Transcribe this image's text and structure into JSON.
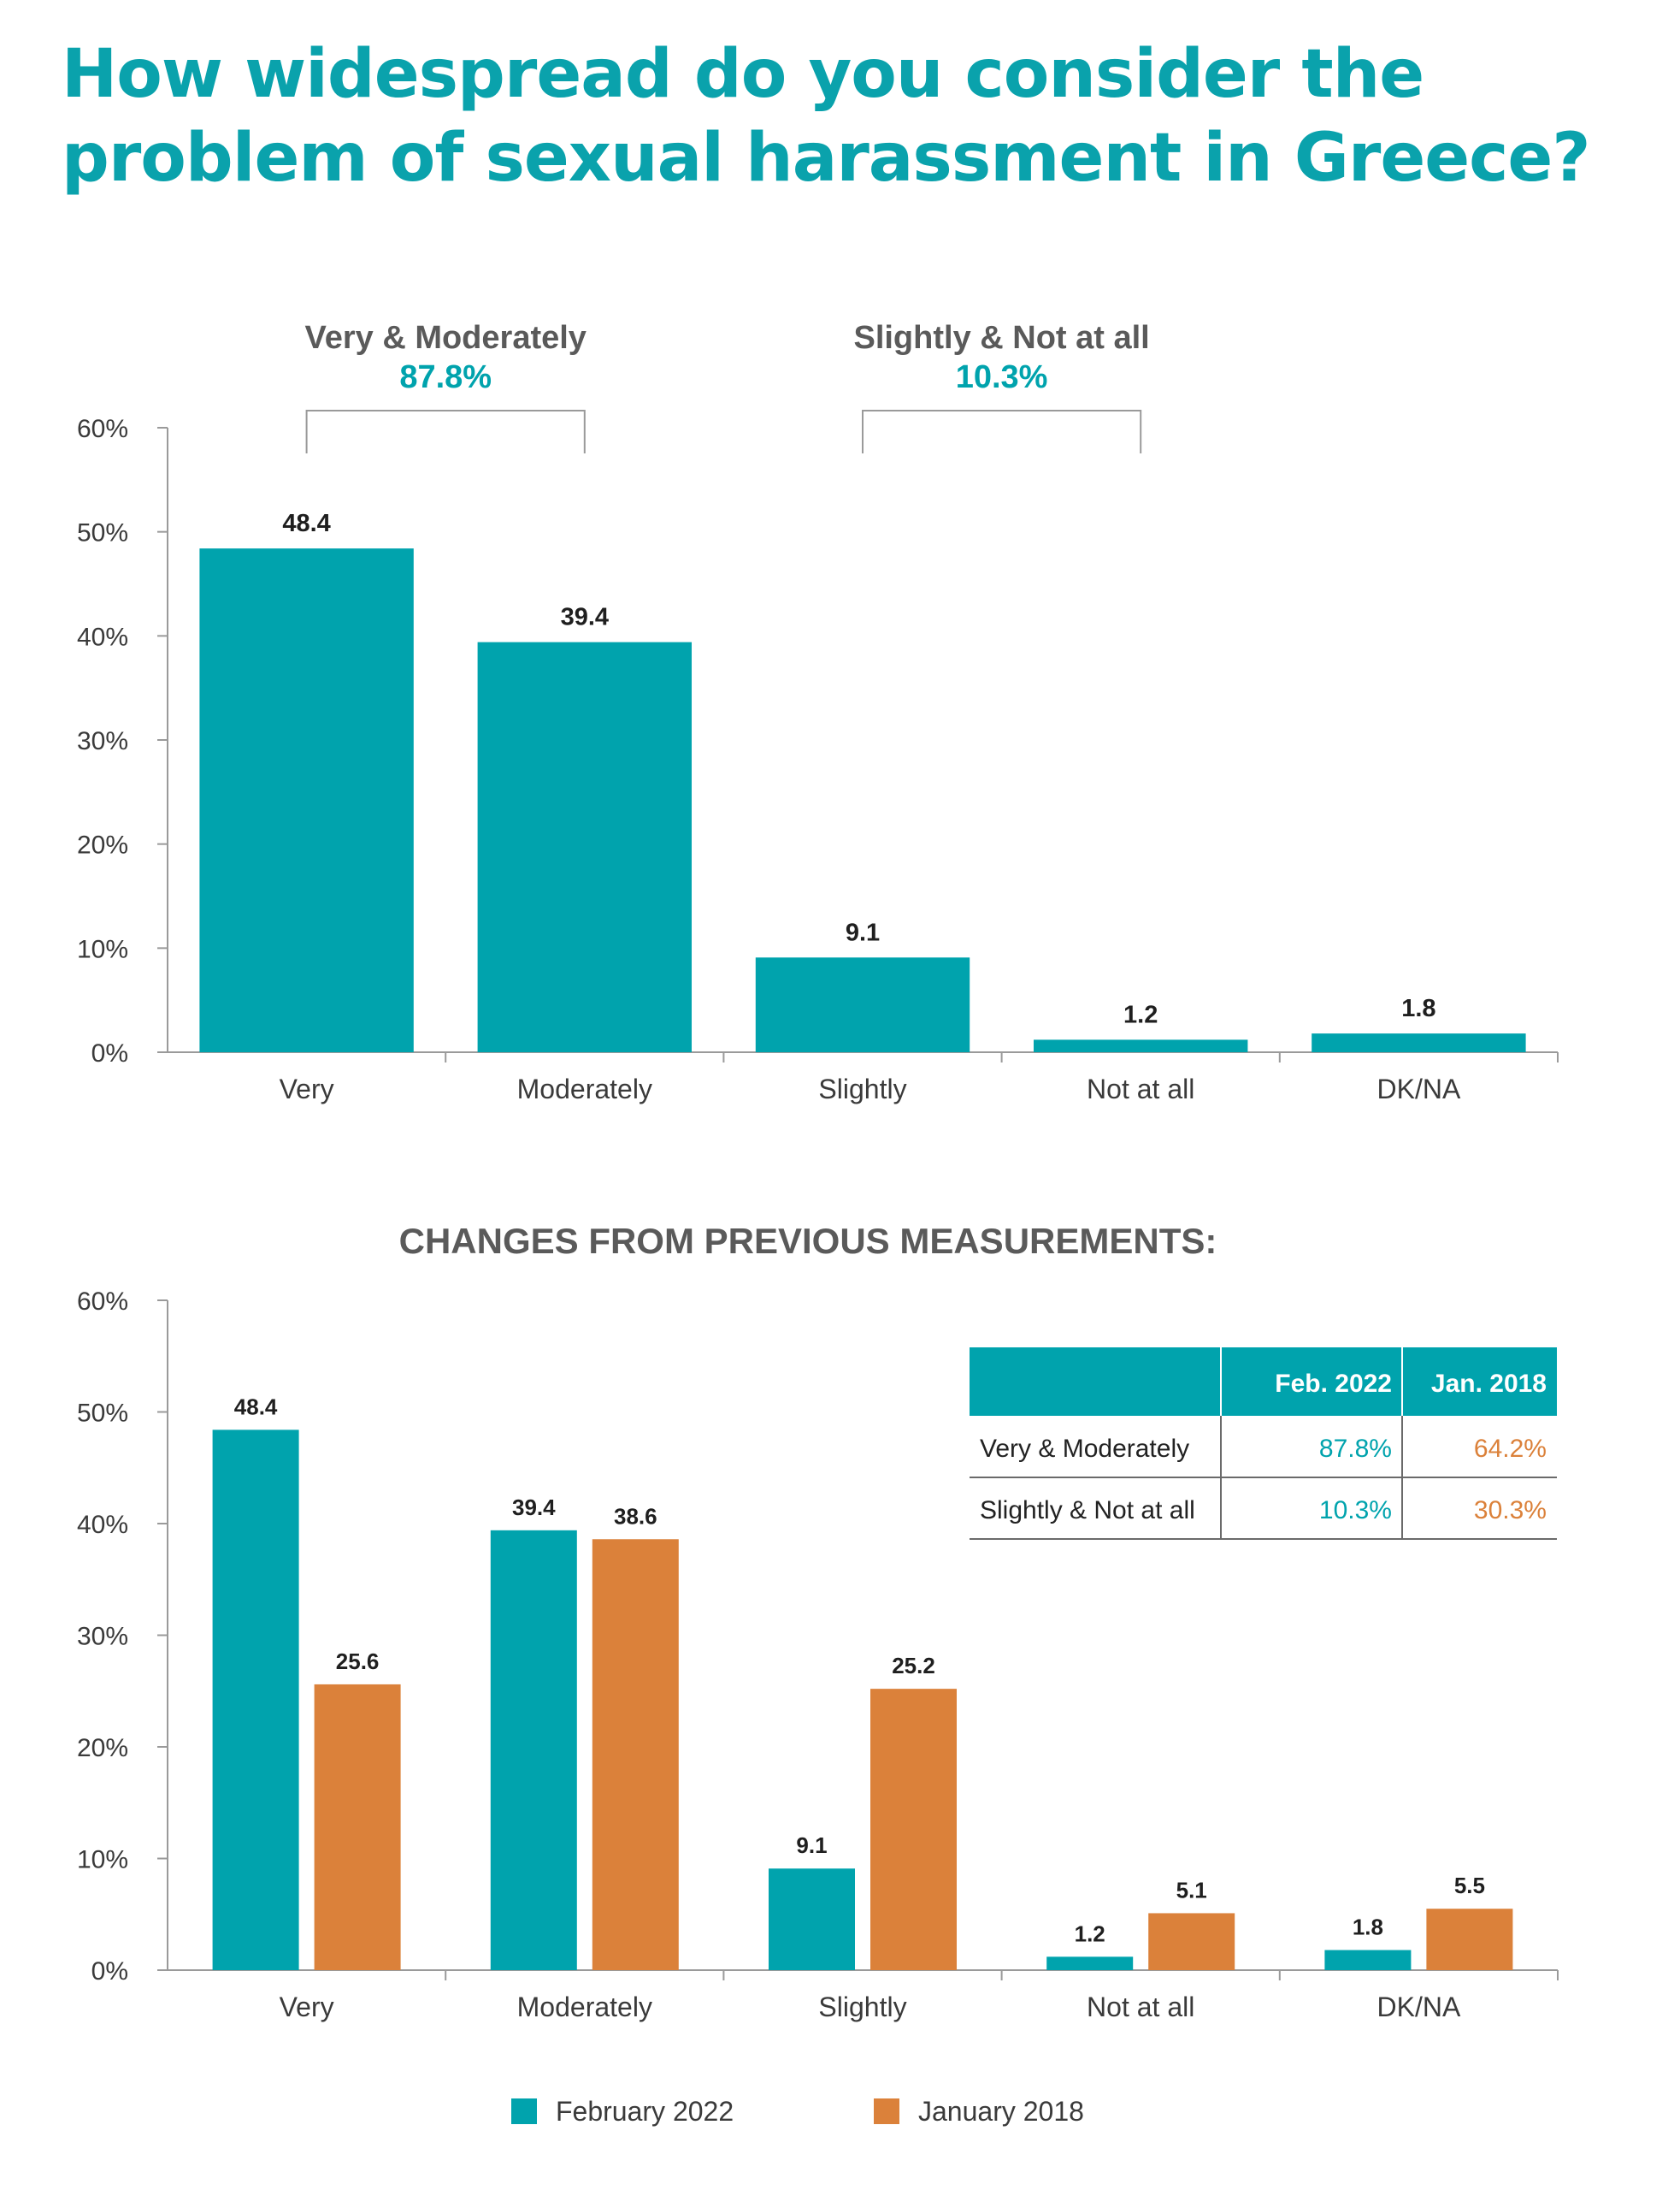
{
  "title_line1": "How widespread do you consider the",
  "title_line2": "problem of sexual harassment in Greece?",
  "colors": {
    "title": "#0aa2ac",
    "teal": "#00a3ad",
    "orange": "#db813a",
    "axis": "#9a9a9a",
    "text": "#3a3a3a",
    "muted": "#5a5a5a"
  },
  "chart_data": [
    {
      "type": "bar",
      "categories": [
        "Very",
        "Moderately",
        "Slightly",
        "Not at all",
        "DK/NA"
      ],
      "values": [
        48.4,
        39.4,
        9.1,
        1.2,
        1.8
      ],
      "value_labels": [
        "48.4",
        "39.4",
        "9.1",
        "1.2",
        "1.8"
      ],
      "yticks": [
        "0%",
        "10%",
        "20%",
        "30%",
        "40%",
        "50%",
        "60%"
      ],
      "ylim": [
        0,
        60
      ],
      "grid": false,
      "groups": [
        {
          "label": "Very & Moderately",
          "value": "87.8%"
        },
        {
          "label": "Slightly & Not at all",
          "value": "10.3%"
        }
      ]
    },
    {
      "type": "bar",
      "title": "CHANGES FROM PREVIOUS MEASUREMENTS:",
      "categories": [
        "Very",
        "Moderately",
        "Slightly",
        "Not at all",
        "DK/NA"
      ],
      "series": [
        {
          "name": "February 2022",
          "values": [
            48.4,
            39.4,
            9.1,
            1.2,
            1.8
          ],
          "value_labels": [
            "48.4",
            "39.4",
            "9.1",
            "1.2",
            "1.8"
          ]
        },
        {
          "name": "January 2018",
          "values": [
            25.6,
            38.6,
            25.2,
            5.1,
            5.5
          ],
          "value_labels": [
            "25.6",
            "38.6",
            "25.2",
            "5.1",
            "5.5"
          ]
        }
      ],
      "yticks": [
        "0%",
        "10%",
        "20%",
        "30%",
        "40%",
        "50%",
        "60%"
      ],
      "ylim": [
        0,
        60
      ],
      "grid": false,
      "legend": "bottom",
      "table": {
        "headers": [
          "",
          "Feb. 2022",
          "Jan. 2018"
        ],
        "rows": [
          {
            "label": "Very & Moderately",
            "feb": "87.8%",
            "jan": "64.2%"
          },
          {
            "label": "Slightly & Not at all",
            "feb": "10.3%",
            "jan": "30.3%"
          }
        ]
      }
    }
  ]
}
